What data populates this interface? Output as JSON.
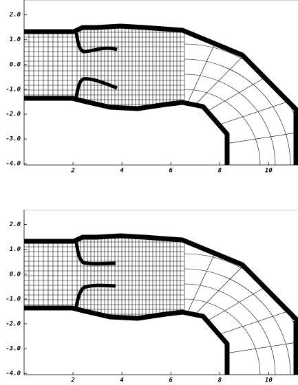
{
  "chart_data": [
    {
      "type": "mesh",
      "xlim": [
        0,
        11.2
      ],
      "ylim": [
        -4.05,
        2.6
      ],
      "xticks": [
        2,
        4,
        6,
        8,
        10
      ],
      "yticks": [
        {
          "value": 2,
          "label": "2.0"
        },
        {
          "value": 1,
          "label": "1.0"
        },
        {
          "value": 0,
          "label": "0.0"
        },
        {
          "value": -1,
          "label": "-1.0"
        },
        {
          "value": -2,
          "label": "-2.0"
        },
        {
          "value": -3,
          "label": "-3.0"
        },
        {
          "value": -4,
          "label": "-4.0"
        }
      ]
    },
    {
      "type": "mesh",
      "xlim": [
        0,
        11.2
      ],
      "ylim": [
        -4.05,
        2.6
      ],
      "xticks": [
        2,
        4,
        6,
        8,
        10
      ],
      "yticks": [
        {
          "value": 2,
          "label": "2.0"
        },
        {
          "value": 1,
          "label": "1.0"
        },
        {
          "value": 0,
          "label": "0.0"
        },
        {
          "value": -1,
          "label": "-1.0"
        },
        {
          "value": -2,
          "label": "-2.0"
        },
        {
          "value": -3,
          "label": "-3.0"
        },
        {
          "value": -4,
          "label": "-4.0"
        }
      ]
    }
  ]
}
